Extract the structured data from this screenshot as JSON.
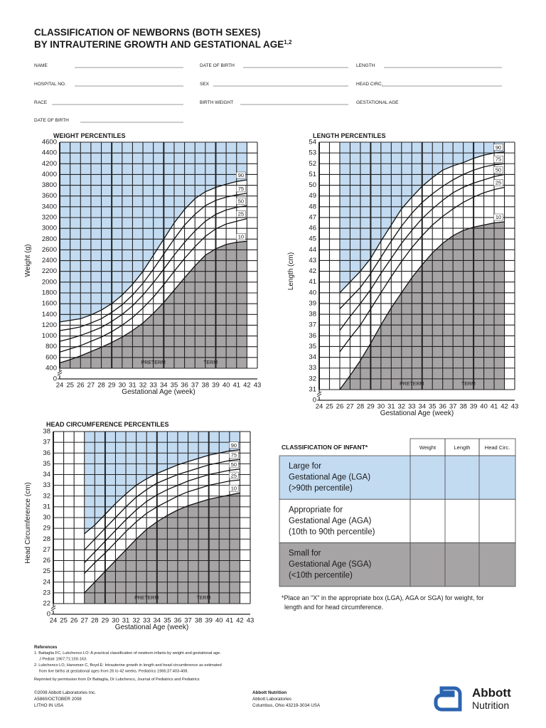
{
  "header": {
    "title_line1": "CLASSIFICATION OF NEWBORNS (BOTH SEXES)",
    "title_line2": "BY INTRAUTERINE GROWTH AND GESTATIONAL AGE",
    "superscript": "1,2"
  },
  "form": {
    "fields": [
      "NAME",
      "DATE OF BIRTH",
      "LENGTH",
      "HOSPITAL NO.",
      "SEX",
      "HEAD CIRC.",
      "RACE",
      "BIRTH WEIGHT",
      "GESTATIONAL AGE",
      "DATE OF BIRTH"
    ]
  },
  "chart_data": [
    {
      "type": "line",
      "title": "WEIGHT PERCENTILES",
      "x_label": "Gestational Age (week)",
      "y_label": "Weight (g)",
      "xlim": [
        24,
        43
      ],
      "xticks": [
        24,
        25,
        26,
        27,
        28,
        29,
        30,
        31,
        32,
        33,
        34,
        35,
        36,
        37,
        38,
        39,
        40,
        41,
        42,
        43
      ],
      "ylim": [
        0,
        4600
      ],
      "yticks": [
        0,
        400,
        600,
        800,
        1000,
        1200,
        1400,
        1600,
        1800,
        2000,
        2200,
        2400,
        2600,
        2800,
        3000,
        3200,
        3400,
        3600,
        3800,
        4000,
        4200,
        4400,
        4600
      ],
      "y_break": true,
      "grid": true,
      "upper_fill": "#c3dbf1",
      "lower_fill": "#a7a4a6",
      "annotations": [
        "PRETERM",
        "TERM"
      ],
      "x": [
        24,
        25,
        26,
        27,
        28,
        29,
        30,
        31,
        32,
        33,
        34,
        35,
        36,
        37,
        38,
        39,
        40,
        41,
        42
      ],
      "series": [
        {
          "name": "90",
          "color": "#111111",
          "values": [
            1260,
            1290,
            1320,
            1390,
            1480,
            1600,
            1760,
            1960,
            2200,
            2500,
            2800,
            3100,
            3350,
            3550,
            3680,
            3760,
            3820,
            3870,
            3900
          ]
        },
        {
          "name": "75",
          "color": "#111111",
          "values": [
            1100,
            1130,
            1170,
            1240,
            1320,
            1440,
            1580,
            1760,
            1980,
            2240,
            2520,
            2800,
            3060,
            3260,
            3420,
            3520,
            3580,
            3620,
            3650
          ]
        },
        {
          "name": "50",
          "color": "#111111",
          "values": [
            900,
            950,
            1010,
            1080,
            1160,
            1270,
            1400,
            1560,
            1760,
            1990,
            2240,
            2500,
            2740,
            2950,
            3130,
            3260,
            3340,
            3390,
            3420
          ]
        },
        {
          "name": "25",
          "color": "#111111",
          "values": [
            700,
            760,
            820,
            900,
            980,
            1080,
            1200,
            1340,
            1520,
            1720,
            1950,
            2200,
            2440,
            2660,
            2850,
            2990,
            3080,
            3130,
            3180
          ]
        },
        {
          "name": "10",
          "color": "#111111",
          "values": [
            500,
            560,
            630,
            710,
            790,
            880,
            980,
            1100,
            1240,
            1420,
            1620,
            1850,
            2080,
            2300,
            2500,
            2620,
            2700,
            2740,
            2760
          ]
        }
      ]
    },
    {
      "type": "line",
      "title": "LENGTH PERCENTILES",
      "x_label": "Gestational Age (week)",
      "y_label": "Length (cm)",
      "xlim": [
        24,
        43
      ],
      "xticks": [
        24,
        25,
        26,
        27,
        28,
        29,
        30,
        31,
        32,
        33,
        34,
        35,
        36,
        37,
        38,
        39,
        40,
        41,
        42,
        43
      ],
      "ylim": [
        0,
        54
      ],
      "yticks": [
        0,
        31,
        32,
        33,
        34,
        35,
        36,
        37,
        38,
        39,
        40,
        41,
        42,
        43,
        44,
        45,
        46,
        47,
        48,
        49,
        50,
        51,
        52,
        53,
        54
      ],
      "y_break": true,
      "grid": true,
      "upper_fill": "#c3dbf1",
      "lower_fill": "#a7a4a6",
      "annotations": [
        "PRETERM",
        "TERM"
      ],
      "x": [
        26,
        27,
        28,
        29,
        30,
        31,
        32,
        33,
        34,
        35,
        36,
        37,
        38,
        39,
        40,
        41,
        42
      ],
      "series": [
        {
          "name": "90",
          "color": "#111111",
          "values": [
            40,
            41,
            42,
            43.2,
            44.8,
            46.3,
            47.8,
            48.9,
            49.9,
            50.7,
            51.4,
            51.8,
            52.1,
            52.5,
            52.8,
            53,
            53.1
          ]
        },
        {
          "name": "75",
          "color": "#111111",
          "values": [
            38.5,
            39.5,
            40.5,
            41.8,
            43.3,
            44.8,
            46.2,
            47.4,
            48.4,
            49.2,
            49.9,
            50.5,
            51,
            51.4,
            51.7,
            51.9,
            52
          ]
        },
        {
          "name": "50",
          "color": "#111111",
          "values": [
            36.5,
            37.8,
            39,
            40.3,
            41.8,
            43.2,
            44.6,
            45.8,
            46.9,
            47.8,
            48.6,
            49.3,
            49.8,
            50.2,
            50.5,
            50.8,
            51
          ]
        },
        {
          "name": "25",
          "color": "#111111",
          "values": [
            34.5,
            35.8,
            37,
            38.5,
            40,
            41.5,
            42.9,
            44.2,
            45.3,
            46.3,
            47.1,
            47.8,
            48.4,
            48.9,
            49.3,
            49.6,
            49.8
          ]
        },
        {
          "name": "10",
          "color": "#111111",
          "values": [
            31,
            32.3,
            33.7,
            35.3,
            37,
            38.6,
            40,
            41.4,
            42.6,
            43.7,
            44.6,
            45.3,
            45.8,
            46.1,
            46.3,
            46.5,
            46.6
          ]
        }
      ]
    },
    {
      "type": "line",
      "title": "HEAD CIRCUMFERENCE PERCENTILES",
      "x_label": "Gestational Age (week)",
      "y_label": "Head Circumference (cm)",
      "xlim": [
        24,
        43
      ],
      "xticks": [
        24,
        25,
        26,
        27,
        28,
        29,
        30,
        31,
        32,
        33,
        34,
        35,
        36,
        37,
        38,
        39,
        40,
        41,
        42,
        43
      ],
      "ylim": [
        0,
        38
      ],
      "yticks": [
        0,
        22,
        23,
        24,
        25,
        26,
        27,
        28,
        29,
        30,
        31,
        32,
        33,
        34,
        35,
        36,
        37,
        38
      ],
      "y_break": true,
      "grid": true,
      "upper_fill": "#c3dbf1",
      "lower_fill": "#a7a4a6",
      "annotations": [
        "PRETERM",
        "TERM"
      ],
      "x": [
        27,
        28,
        29,
        30,
        31,
        32,
        33,
        34,
        35,
        36,
        37,
        38,
        39,
        40,
        41,
        42
      ],
      "series": [
        {
          "name": "90",
          "color": "#111111",
          "values": [
            28.5,
            29.3,
            30.3,
            31.3,
            32.2,
            33,
            33.6,
            34.1,
            34.5,
            34.9,
            35.2,
            35.5,
            35.8,
            36,
            36.2,
            36.3
          ]
        },
        {
          "name": "75",
          "color": "#111111",
          "values": [
            27,
            28,
            29,
            30,
            31,
            31.9,
            32.6,
            33.2,
            33.6,
            34,
            34.3,
            34.6,
            34.9,
            35.1,
            35.3,
            35.4
          ]
        },
        {
          "name": "50",
          "color": "#111111",
          "values": [
            25.8,
            26.8,
            27.8,
            28.8,
            29.8,
            30.7,
            31.5,
            32.1,
            32.6,
            33,
            33.4,
            33.7,
            34,
            34.2,
            34.4,
            34.5
          ]
        },
        {
          "name": "25",
          "color": "#111111",
          "values": [
            24.8,
            25.8,
            26.7,
            27.7,
            28.7,
            29.6,
            30.4,
            31,
            31.5,
            32,
            32.4,
            32.7,
            33,
            33.2,
            33.4,
            33.5
          ]
        },
        {
          "name": "10",
          "color": "#111111",
          "values": [
            23,
            24,
            25,
            26,
            27,
            28,
            28.9,
            29.6,
            30.2,
            30.7,
            31.1,
            31.4,
            31.7,
            31.9,
            32.1,
            32.3
          ]
        }
      ]
    }
  ],
  "classification": {
    "title": "CLASSIFICATION OF INFANT*",
    "columns": [
      "Weight",
      "Length",
      "Head Circ."
    ],
    "rows": [
      [
        "Large for",
        "Gestational Age (LGA)",
        "(>90th percentile)"
      ],
      [
        "Appropriate for",
        "Gestational Age (AGA)",
        "(10th to 90th percentile)"
      ],
      [
        "Small for",
        "Gestational Age (SGA)",
        "(<10th percentile)"
      ]
    ],
    "note": [
      "*Place an \"X\" in the appropriate box (LGA), AGA or SGA) for weight, for",
      "length and for head circumference."
    ]
  },
  "references": {
    "title": "References",
    "lines": [
      "1. Battaglia FC, Lubchenco LO: A practical classification of newborn infants by weight and gestational age.",
      "J Pediatr 1967;71:159-163.",
      "2. Lubchenco LO, Hansman C, Boyd E: Intrauterine growth in length and head circumference as estimated",
      "from live births at gestational ages from 26 to 42 weeks. Pediatrics 1966;37:403-408.",
      "Reprinted by permission from Dr Battaglia, Dr Lubchenco, Journal of Pediatrics and Pediatrics"
    ]
  },
  "footer": {
    "left": [
      "©2008 Abbott Laboratories Inc.",
      "A5860/OCTOBER 2008",
      "LITHO IN USA"
    ],
    "middle": [
      "Abbott Nutrition",
      "Abbott Laboratories",
      "Columbus, Ohio 43219-3034 USA"
    ],
    "logo": [
      "Abbott",
      "Nutrition"
    ]
  }
}
